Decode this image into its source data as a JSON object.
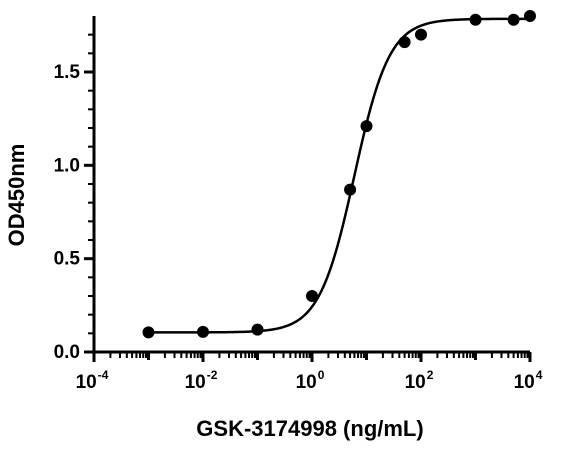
{
  "chart_data": {
    "type": "scatter",
    "title": "",
    "xlabel": "GSK-3174998 (ng/mL)",
    "ylabel": "OD450nm",
    "x_scale": "log10",
    "xlim": [
      0.0001,
      10000
    ],
    "ylim": [
      0,
      1.8
    ],
    "x_ticks": [
      {
        "value": 0.0001,
        "base": "10",
        "exp": "-4"
      },
      {
        "value": 0.01,
        "base": "10",
        "exp": "-2"
      },
      {
        "value": 1,
        "base": "10",
        "exp": "0"
      },
      {
        "value": 100,
        "base": "10",
        "exp": "2"
      },
      {
        "value": 10000,
        "base": "10",
        "exp": "4"
      }
    ],
    "y_ticks": [
      {
        "value": 0.0,
        "label": "0.0"
      },
      {
        "value": 0.5,
        "label": "0.5"
      },
      {
        "value": 1.0,
        "label": "1.0"
      },
      {
        "value": 1.5,
        "label": "1.5"
      }
    ],
    "points": [
      {
        "x": 0.001,
        "y": 0.105
      },
      {
        "x": 0.01,
        "y": 0.108
      },
      {
        "x": 0.1,
        "y": 0.12
      },
      {
        "x": 1,
        "y": 0.3
      },
      {
        "x": 5,
        "y": 0.87
      },
      {
        "x": 10,
        "y": 1.21
      },
      {
        "x": 50,
        "y": 1.66
      },
      {
        "x": 100,
        "y": 1.7
      },
      {
        "x": 1000,
        "y": 1.78
      },
      {
        "x": 5000,
        "y": 1.78
      },
      {
        "x": 10000,
        "y": 1.8
      }
    ],
    "fit": {
      "bottom": 0.105,
      "top": 1.785,
      "ec50": 6.0,
      "hill": 1.35
    },
    "grid": false,
    "legend": "none",
    "colors": {
      "line": "#000000",
      "points": "#000000",
      "background": "#ffffff"
    }
  }
}
